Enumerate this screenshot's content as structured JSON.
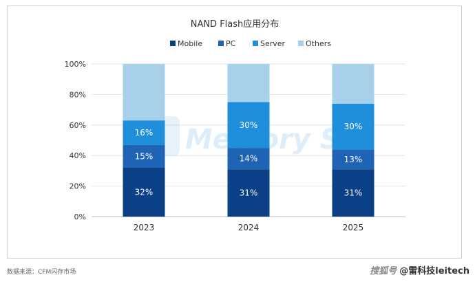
{
  "chart_data": {
    "type": "bar",
    "stacked": true,
    "title": "NAND Flash应用分布",
    "categories": [
      "2023",
      "2024",
      "2025"
    ],
    "series": [
      {
        "name": "Mobile",
        "values": [
          32,
          31,
          31
        ],
        "labels": [
          "32%",
          "31%",
          "31%"
        ],
        "color": "#0b3f86"
      },
      {
        "name": "PC",
        "values": [
          15,
          14,
          13
        ],
        "labels": [
          "15%",
          "14%",
          "13%"
        ],
        "color": "#1e63b4"
      },
      {
        "name": "Server",
        "values": [
          16,
          30,
          30
        ],
        "labels": [
          "16%",
          "30%",
          "30%"
        ],
        "color": "#1f8fdc"
      },
      {
        "name": "Others",
        "values": [
          37,
          25,
          26
        ],
        "labels": [
          "",
          "",
          ""
        ],
        "color": "#a7d1ea"
      }
    ],
    "yticks": [
      "0%",
      "20%",
      "40%",
      "60%",
      "80%",
      "100%"
    ],
    "ylim": [
      0,
      100
    ],
    "grid": true,
    "legend": "top"
  },
  "watermark_text": "Memory S",
  "source_text": "数据来源：CFM闪存市场",
  "credit": {
    "brand": "搜狐号",
    "handle": "@雷科技leitech"
  }
}
